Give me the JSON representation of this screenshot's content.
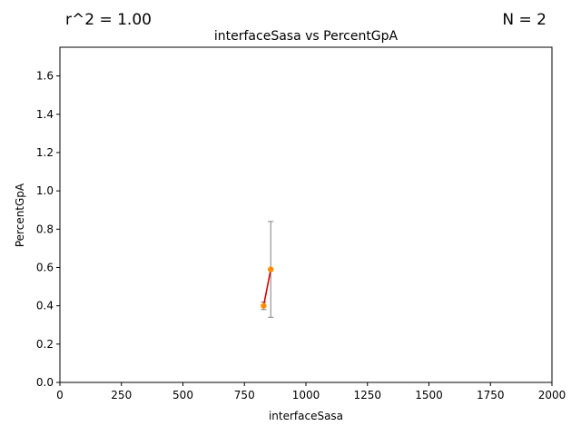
{
  "annotations": {
    "r_squared": "r^2 = 1.00",
    "n_count": "N = 2"
  },
  "chart_data": {
    "type": "scatter",
    "title": "interfaceSasa vs PercentGpA",
    "xlabel": "interfaceSasa",
    "ylabel": "PercentGpA",
    "xlim": [
      0,
      2000
    ],
    "ylim": [
      0,
      1.75
    ],
    "xticks": [
      0,
      250,
      500,
      750,
      1000,
      1250,
      1500,
      1750,
      2000
    ],
    "yticks": [
      0.0,
      0.2,
      0.4,
      0.6,
      0.8,
      1.0,
      1.2,
      1.4,
      1.6
    ],
    "x_tick_labels": [
      "0",
      "250",
      "500",
      "750",
      "1000",
      "1250",
      "1500",
      "1750",
      "2000"
    ],
    "y_tick_labels": [
      "0.0",
      "0.2",
      "0.4",
      "0.6",
      "0.8",
      "1.0",
      "1.2",
      "1.4",
      "1.6"
    ],
    "points": [
      {
        "x": 828,
        "y": 0.4,
        "err": 0.02
      },
      {
        "x": 857,
        "y": 0.59,
        "err": 0.25
      }
    ],
    "fit_line": {
      "x": [
        828,
        857
      ],
      "y": [
        0.4,
        0.59
      ]
    },
    "grid": false,
    "colors": {
      "point": "#ff8c00",
      "fit_line": "#d40000",
      "errorbar": "#808080",
      "axes": "#000000"
    }
  }
}
